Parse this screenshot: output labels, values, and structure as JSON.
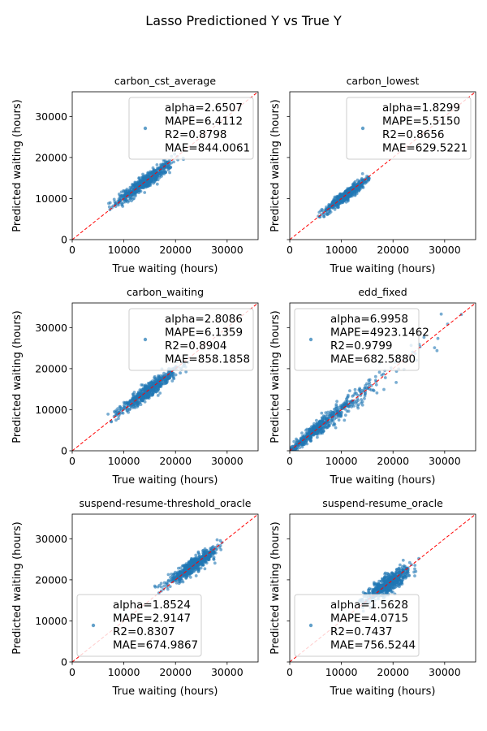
{
  "figure": {
    "title": "Lasso Predictioned Y vs True Y"
  },
  "chart_data": [
    {
      "type": "scatter",
      "title": "carbon_cst_average",
      "xlabel": "True waiting (hours)",
      "ylabel": "Predicted waiting (hours)",
      "xlim": [
        0,
        36000
      ],
      "ylim": [
        0,
        36000
      ],
      "xticks": [
        0,
        10000,
        20000,
        30000
      ],
      "yticks": [
        0,
        10000,
        20000,
        30000
      ],
      "xtick_labels": [
        "0",
        "10000",
        "20000",
        "30000"
      ],
      "ytick_labels": [
        "0",
        "10000",
        "20000",
        "30000"
      ],
      "show_yticklabels": true,
      "legend_position": "upper right",
      "legend": [
        "alpha=2.6507",
        "MAPE=6.4112",
        "R2=0.8798",
        "MAE=844.0061"
      ],
      "point_color": "#1f77b4",
      "reference_line": {
        "style": "dashed",
        "color": "#ff0000",
        "from": [
          0,
          0
        ],
        "to": [
          36000,
          36000
        ]
      },
      "cloud": {
        "x_min": 6000,
        "x_max": 24000,
        "x_center": 14000,
        "x_sd": 2700,
        "slope": 0.88,
        "intercept": 1600,
        "noise_sd": 900,
        "n": 550
      }
    },
    {
      "type": "scatter",
      "title": "carbon_lowest",
      "xlabel": "True waiting (hours)",
      "ylabel": "Predicted waiting (hours)",
      "xlim": [
        0,
        36000
      ],
      "ylim": [
        0,
        36000
      ],
      "xticks": [
        0,
        10000,
        20000,
        30000
      ],
      "yticks": [
        0,
        10000,
        20000,
        30000
      ],
      "xtick_labels": [
        "0",
        "10000",
        "20000",
        "30000"
      ],
      "ytick_labels": [],
      "show_yticklabels": false,
      "legend_position": "upper right",
      "legend": [
        "alpha=1.8299",
        "MAPE=5.5150",
        "R2=0.8656",
        "MAE=629.5221"
      ],
      "point_color": "#1f77b4",
      "reference_line": {
        "style": "dashed",
        "color": "#ff0000",
        "from": [
          0,
          0
        ],
        "to": [
          36000,
          36000
        ]
      },
      "cloud": {
        "x_min": 5500,
        "x_max": 16500,
        "x_center": 10800,
        "x_sd": 2000,
        "slope": 0.93,
        "intercept": 700,
        "noise_sd": 650,
        "n": 550
      }
    },
    {
      "type": "scatter",
      "title": "carbon_waiting",
      "xlabel": "True waiting (hours)",
      "ylabel": "Predicted waiting (hours)",
      "xlim": [
        0,
        36000
      ],
      "ylim": [
        0,
        36000
      ],
      "xticks": [
        0,
        10000,
        20000,
        30000
      ],
      "yticks": [
        0,
        10000,
        20000,
        30000
      ],
      "xtick_labels": [
        "0",
        "10000",
        "20000",
        "30000"
      ],
      "ytick_labels": [
        "0",
        "10000",
        "20000",
        "30000"
      ],
      "show_yticklabels": true,
      "legend_position": "upper right",
      "legend": [
        "alpha=2.8086",
        "MAPE=6.1359",
        "R2=0.8904",
        "MAE=858.1858"
      ],
      "point_color": "#1f77b4",
      "reference_line": {
        "style": "dashed",
        "color": "#ff0000",
        "from": [
          0,
          0
        ],
        "to": [
          36000,
          36000
        ]
      },
      "cloud": {
        "x_min": 6000,
        "x_max": 24000,
        "x_center": 15000,
        "x_sd": 2800,
        "slope": 0.9,
        "intercept": 1400,
        "noise_sd": 900,
        "n": 550
      }
    },
    {
      "type": "scatter",
      "title": "edd_fixed",
      "xlabel": "True waiting (hours)",
      "ylabel": "Predicted waiting (hours)",
      "xlim": [
        0,
        36000
      ],
      "ylim": [
        0,
        36000
      ],
      "xticks": [
        0,
        10000,
        20000,
        30000
      ],
      "yticks": [
        0,
        10000,
        20000,
        30000
      ],
      "xtick_labels": [
        "0",
        "10000",
        "20000",
        "30000"
      ],
      "ytick_labels": [],
      "show_yticklabels": false,
      "legend_position": "upper left",
      "legend": [
        "alpha=6.9958",
        "MAPE=4923.1462",
        "R2=0.9799",
        "MAE=682.5880"
      ],
      "point_color": "#1f77b4",
      "reference_line": {
        "style": "dashed",
        "color": "#ff0000",
        "from": [
          0,
          0
        ],
        "to": [
          36000,
          36000
        ]
      },
      "cloud": {
        "x_min": 0,
        "x_max": 35500,
        "x_center": 7000,
        "x_sd": 7000,
        "slope": 1.0,
        "intercept": 0,
        "noise_sd": 600,
        "n": 550,
        "skewed": true
      }
    },
    {
      "type": "scatter",
      "title": "suspend-resume-threshold_oracle",
      "xlabel": "True waiting (hours)",
      "ylabel": "Predicted waiting (hours)",
      "xlim": [
        0,
        36000
      ],
      "ylim": [
        0,
        36000
      ],
      "xticks": [
        0,
        10000,
        20000,
        30000
      ],
      "yticks": [
        0,
        10000,
        20000,
        30000
      ],
      "xtick_labels": [
        "0",
        "10000",
        "20000",
        "30000"
      ],
      "ytick_labels": [
        "0",
        "10000",
        "20000",
        "30000"
      ],
      "show_yticklabels": true,
      "legend_position": "lower left",
      "legend": [
        "alpha=1.8524",
        "MAPE=2.9147",
        "R2=0.8307",
        "MAE=674.9867"
      ],
      "point_color": "#1f77b4",
      "reference_line": {
        "style": "dashed",
        "color": "#ff0000",
        "from": [
          0,
          0
        ],
        "to": [
          36000,
          36000
        ]
      },
      "cloud": {
        "x_min": 15500,
        "x_max": 29000,
        "x_center": 23500,
        "x_sd": 2500,
        "slope": 0.85,
        "intercept": 3500,
        "noise_sd": 850,
        "n": 550
      }
    },
    {
      "type": "scatter",
      "title": "suspend-resume_oracle",
      "xlabel": "True waiting (hours)",
      "ylabel": "Predicted waiting (hours)",
      "xlim": [
        0,
        36000
      ],
      "ylim": [
        0,
        36000
      ],
      "xticks": [
        0,
        10000,
        20000,
        30000
      ],
      "yticks": [
        0,
        10000,
        20000,
        30000
      ],
      "xtick_labels": [
        "0",
        "10000",
        "20000",
        "30000"
      ],
      "ytick_labels": [],
      "show_yticklabels": false,
      "legend_position": "lower left",
      "legend": [
        "alpha=1.5628",
        "MAPE=4.0715",
        "R2=0.7437",
        "MAE=756.5244"
      ],
      "point_color": "#1f77b4",
      "reference_line": {
        "style": "dashed",
        "color": "#ff0000",
        "from": [
          0,
          0
        ],
        "to": [
          36000,
          36000
        ]
      },
      "cloud": {
        "x_min": 13000,
        "x_max": 25000,
        "x_center": 19000,
        "x_sd": 2000,
        "slope": 0.82,
        "intercept": 3400,
        "noise_sd": 1100,
        "n": 550
      }
    }
  ]
}
